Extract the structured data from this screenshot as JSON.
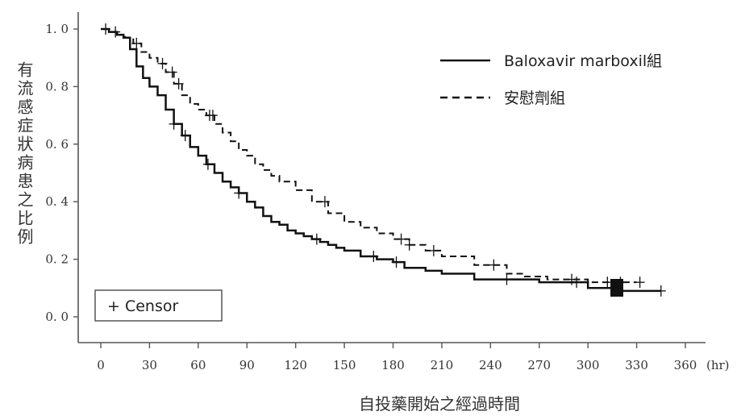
{
  "chart_data": {
    "type": "line",
    "title": "",
    "xlabel": "自投藥開始之經過時間",
    "x_unit": "(hr)",
    "ylabel": "有流感症狀病患之比例",
    "xlim": [
      0,
      360
    ],
    "ylim": [
      0,
      1.0
    ],
    "x_ticks": [
      0,
      30,
      60,
      90,
      120,
      150,
      180,
      210,
      240,
      270,
      300,
      330,
      360
    ],
    "x_tick_labels": [
      "0",
      "30",
      "60",
      "90",
      "120",
      "150",
      "180",
      "210",
      "240",
      "270",
      "300",
      "330",
      "360"
    ],
    "y_ticks": [
      0,
      0.2,
      0.4,
      0.6,
      0.8,
      1.0
    ],
    "y_tick_labels": [
      "0. 0",
      "0. 2",
      "0. 4",
      "0. 6",
      "0. 8",
      "1. 0"
    ],
    "grid": false,
    "legend_position": "top-right",
    "censor_label": "+ Censor",
    "series": [
      {
        "name": "Baloxavir marboxil組",
        "style": "solid",
        "x": [
          0,
          5,
          10,
          14,
          18,
          22,
          26,
          30,
          35,
          40,
          45,
          50,
          55,
          60,
          65,
          70,
          75,
          80,
          85,
          90,
          95,
          100,
          105,
          110,
          115,
          120,
          125,
          130,
          135,
          140,
          145,
          150,
          160,
          170,
          180,
          187,
          200,
          210,
          225,
          230,
          250,
          270,
          285,
          300,
          320,
          345
        ],
        "values": [
          1.0,
          0.99,
          0.98,
          0.97,
          0.93,
          0.87,
          0.83,
          0.8,
          0.77,
          0.72,
          0.67,
          0.63,
          0.59,
          0.56,
          0.53,
          0.5,
          0.47,
          0.45,
          0.43,
          0.4,
          0.38,
          0.35,
          0.33,
          0.32,
          0.3,
          0.29,
          0.28,
          0.27,
          0.26,
          0.25,
          0.24,
          0.23,
          0.21,
          0.2,
          0.19,
          0.17,
          0.16,
          0.15,
          0.15,
          0.13,
          0.13,
          0.12,
          0.12,
          0.1,
          0.09,
          0.09
        ],
        "censor_x": [
          3,
          9,
          45,
          52,
          66,
          85,
          133,
          168,
          182,
          250,
          293,
          317,
          345
        ]
      },
      {
        "name": "安慰劑組",
        "style": "dashed",
        "x": [
          0,
          5,
          10,
          15,
          20,
          25,
          30,
          35,
          40,
          45,
          50,
          55,
          60,
          65,
          70,
          75,
          80,
          85,
          90,
          95,
          100,
          105,
          110,
          120,
          130,
          140,
          150,
          160,
          170,
          180,
          190,
          200,
          210,
          220,
          230,
          240,
          250,
          260,
          275,
          300,
          315,
          330
        ],
        "values": [
          1.0,
          0.99,
          0.98,
          0.97,
          0.95,
          0.92,
          0.9,
          0.88,
          0.85,
          0.81,
          0.77,
          0.74,
          0.72,
          0.7,
          0.67,
          0.64,
          0.61,
          0.58,
          0.56,
          0.53,
          0.51,
          0.49,
          0.47,
          0.44,
          0.4,
          0.36,
          0.33,
          0.31,
          0.29,
          0.27,
          0.25,
          0.23,
          0.21,
          0.21,
          0.18,
          0.18,
          0.15,
          0.14,
          0.13,
          0.12,
          0.12,
          0.12
        ],
        "censor_x": [
          22,
          38,
          44,
          48,
          67,
          69,
          138,
          185,
          190,
          205,
          242,
          290,
          312,
          320,
          332
        ]
      }
    ]
  }
}
